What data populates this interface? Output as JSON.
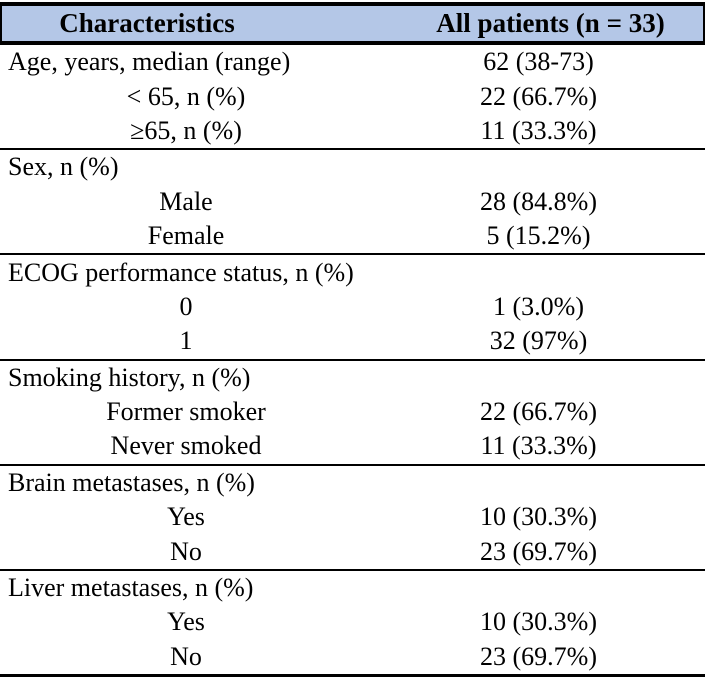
{
  "colors": {
    "header_bg": "#b4c7e7",
    "border": "#000000",
    "text": "#000000",
    "page_bg": "#ffffff"
  },
  "table": {
    "header": {
      "col1": "Characteristics",
      "col2": "All patients (n = 33)"
    },
    "sections": [
      {
        "rows": [
          {
            "label": "Age, years, median (range)",
            "value": "62 (38-73)"
          },
          {
            "label": "< 65, n (%)",
            "value": "22 (66.7%)"
          },
          {
            "label": "≥65, n (%)",
            "value": "11 (33.3%)"
          }
        ]
      },
      {
        "rows": [
          {
            "label": "Sex, n (%)",
            "value": ""
          },
          {
            "label": "Male",
            "value": "28 (84.8%)"
          },
          {
            "label": "Female",
            "value": "5 (15.2%)"
          }
        ]
      },
      {
        "rows": [
          {
            "label": "ECOG performance status, n (%)",
            "value": ""
          },
          {
            "label": "0",
            "value": "1 (3.0%)"
          },
          {
            "label": "1",
            "value": "32 (97%)"
          }
        ]
      },
      {
        "rows": [
          {
            "label": "Smoking history, n (%)",
            "value": ""
          },
          {
            "label": "Former smoker",
            "value": "22 (66.7%)"
          },
          {
            "label": "Never smoked",
            "value": "11 (33.3%)"
          }
        ]
      },
      {
        "rows": [
          {
            "label": "Brain metastases, n (%)",
            "value": ""
          },
          {
            "label": "Yes",
            "value": "10 (30.3%)"
          },
          {
            "label": "No",
            "value": "23 (69.7%)"
          }
        ]
      },
      {
        "rows": [
          {
            "label": "Liver metastases, n (%)",
            "value": ""
          },
          {
            "label": "Yes",
            "value": "10 (30.3%)"
          },
          {
            "label": "No",
            "value": "23 (69.7%)"
          }
        ]
      }
    ]
  }
}
